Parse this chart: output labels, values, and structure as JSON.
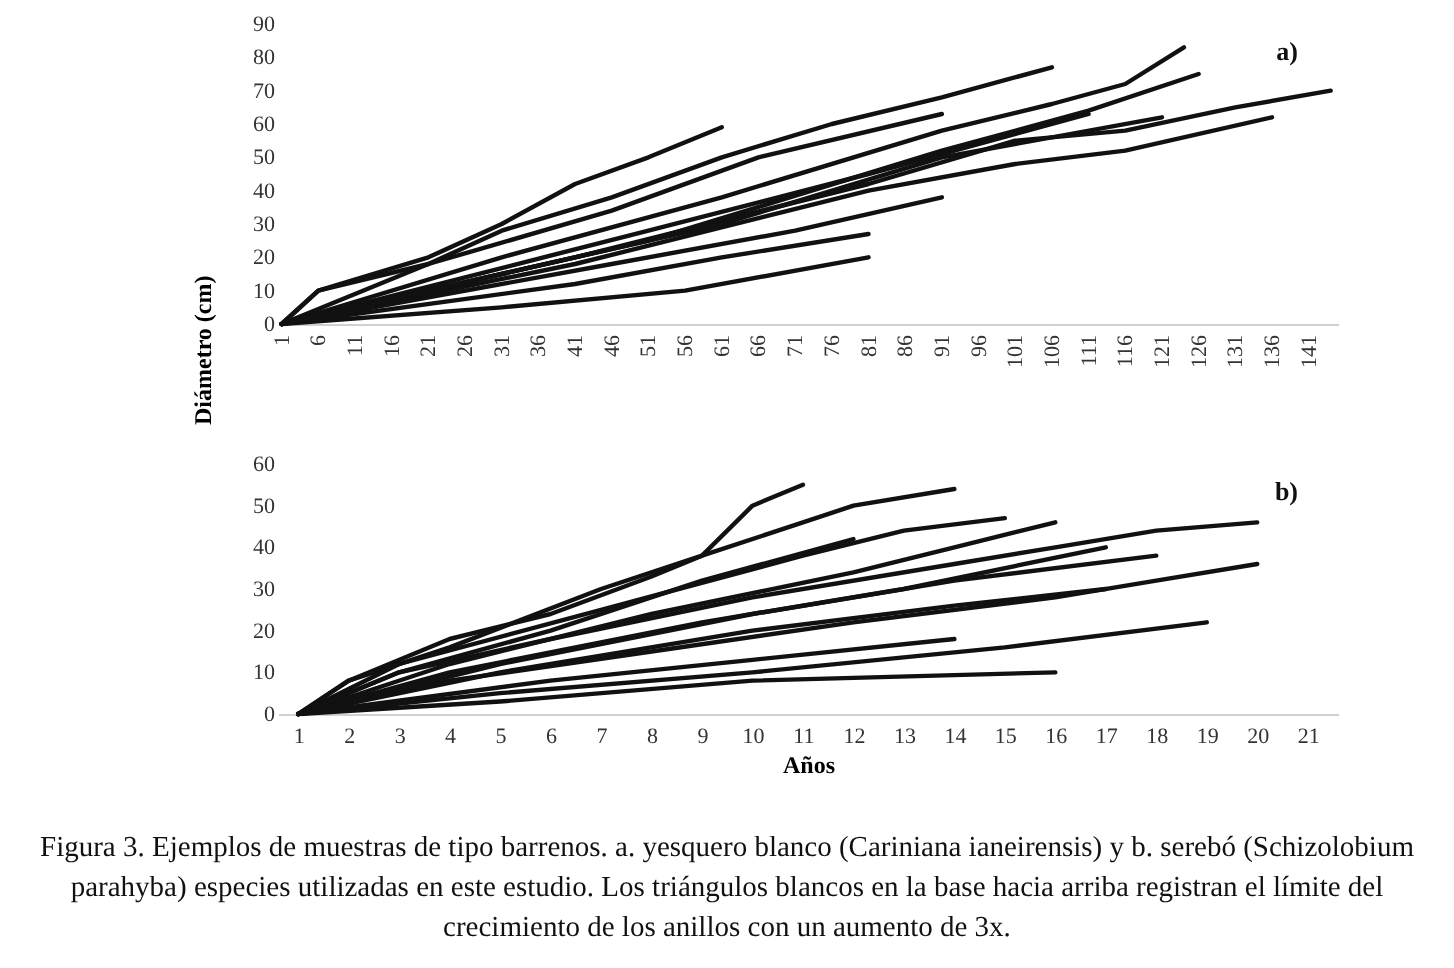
{
  "chart_data": [
    {
      "type": "line",
      "ylabel": "Diámetro (cm)",
      "xlim": [
        0.5,
        145
      ],
      "xticks": [
        1,
        6,
        11,
        16,
        21,
        26,
        31,
        36,
        41,
        46,
        51,
        56,
        61,
        66,
        71,
        76,
        81,
        86,
        91,
        96,
        101,
        106,
        111,
        116,
        121,
        126,
        131,
        136,
        141
      ],
      "ylim": [
        0,
        90
      ],
      "yticks": [
        0,
        10,
        20,
        30,
        40,
        50,
        60,
        70,
        80,
        90
      ],
      "annotations": [
        "a)"
      ],
      "series": [
        {
          "color": "#111111",
          "x": [
            1,
            6,
            21,
            31,
            41,
            51,
            61
          ],
          "values": [
            0,
            10,
            20,
            30,
            42,
            50,
            59
          ]
        },
        {
          "color": "#111111",
          "x": [
            1,
            21,
            31,
            46,
            61,
            76,
            91,
            106
          ],
          "values": [
            0,
            18,
            28,
            38,
            50,
            60,
            68,
            77
          ]
        },
        {
          "color": "#111111",
          "x": [
            1,
            31,
            61,
            91,
            106,
            116,
            124
          ],
          "values": [
            0,
            20,
            38,
            58,
            66,
            72,
            83
          ]
        },
        {
          "color": "#111111",
          "x": [
            1,
            41,
            81,
            101,
            116,
            131,
            144
          ],
          "values": [
            0,
            20,
            42,
            55,
            58,
            65,
            70
          ]
        },
        {
          "color": "#111111",
          "x": [
            1,
            41,
            81,
            101,
            116,
            136
          ],
          "values": [
            0,
            18,
            40,
            48,
            52,
            62
          ]
        },
        {
          "color": "#111111",
          "x": [
            1,
            31,
            56,
            81
          ],
          "values": [
            0,
            5,
            10,
            20
          ]
        },
        {
          "color": "#111111",
          "x": [
            1,
            41,
            61,
            81
          ],
          "values": [
            0,
            12,
            20,
            27
          ]
        },
        {
          "color": "#111111",
          "x": [
            1,
            51,
            91,
            111,
            126
          ],
          "values": [
            0,
            25,
            52,
            64,
            75
          ]
        },
        {
          "color": "#111111",
          "x": [
            1,
            6,
            21,
            46,
            66,
            91
          ],
          "values": [
            0,
            10,
            18,
            34,
            50,
            63
          ]
        },
        {
          "color": "#111111",
          "x": [
            1,
            51,
            81,
            111
          ],
          "values": [
            0,
            28,
            45,
            63
          ]
        },
        {
          "color": "#111111",
          "x": [
            1,
            46,
            71,
            91
          ],
          "values": [
            0,
            18,
            28,
            38
          ]
        },
        {
          "color": "#111111",
          "x": [
            1,
            61,
            91,
            121
          ],
          "values": [
            0,
            30,
            50,
            62
          ]
        }
      ]
    },
    {
      "type": "line",
      "xlabel": "Años",
      "xlim": [
        0.6,
        21.6
      ],
      "xticks": [
        1,
        2,
        3,
        4,
        5,
        6,
        7,
        8,
        9,
        10,
        11,
        12,
        13,
        14,
        15,
        16,
        17,
        18,
        19,
        20,
        21
      ],
      "ylim": [
        0,
        60
      ],
      "yticks": [
        0,
        10,
        20,
        30,
        40,
        50,
        60
      ],
      "annotations": [
        "b)",
        "Figura 3. Ejemplos de muestras de tipo barrenos. a. yesquero blanco (Cariniana ianeirensis) y b. serebó (Schizolobium parahyba) especies utilizadas en este estudio. Los triángulos blancos en la base hacia arriba registran el límite del crecimiento de los anillos con un aumento de 3x."
      ],
      "series": [
        {
          "color": "#111111",
          "x": [
            1,
            2,
            4,
            6,
            8,
            9,
            10,
            11
          ],
          "values": [
            0,
            8,
            18,
            24,
            33,
            38,
            50,
            55
          ]
        },
        {
          "color": "#111111",
          "x": [
            1,
            2,
            4,
            7,
            9,
            11,
            12,
            14
          ],
          "values": [
            0,
            8,
            16,
            30,
            38,
            46,
            50,
            54
          ]
        },
        {
          "color": "#111111",
          "x": [
            1,
            3,
            6,
            10,
            14,
            16,
            18,
            20
          ],
          "values": [
            0,
            10,
            18,
            28,
            36,
            40,
            44,
            46
          ]
        },
        {
          "color": "#111111",
          "x": [
            1,
            4,
            8,
            12,
            16,
            18,
            20
          ],
          "values": [
            0,
            8,
            15,
            22,
            28,
            32,
            36
          ]
        },
        {
          "color": "#111111",
          "x": [
            1,
            5,
            10,
            15,
            19
          ],
          "values": [
            0,
            5,
            10,
            16,
            22
          ]
        },
        {
          "color": "#111111",
          "x": [
            1,
            5,
            10,
            16
          ],
          "values": [
            0,
            3,
            8,
            10
          ]
        },
        {
          "color": "#111111",
          "x": [
            1,
            3,
            7,
            11,
            13,
            15
          ],
          "values": [
            0,
            12,
            25,
            38,
            44,
            47
          ]
        },
        {
          "color": "#111111",
          "x": [
            1,
            4,
            8,
            12,
            14,
            16
          ],
          "values": [
            0,
            12,
            24,
            34,
            40,
            46
          ]
        },
        {
          "color": "#111111",
          "x": [
            1,
            5,
            10,
            14,
            17
          ],
          "values": [
            0,
            10,
            20,
            26,
            30
          ]
        },
        {
          "color": "#111111",
          "x": [
            1,
            3,
            6,
            9,
            12
          ],
          "values": [
            0,
            10,
            20,
            32,
            42
          ]
        },
        {
          "color": "#111111",
          "x": [
            1,
            4,
            9,
            13,
            17
          ],
          "values": [
            0,
            10,
            22,
            30,
            40
          ]
        },
        {
          "color": "#111111",
          "x": [
            1,
            6,
            10,
            14
          ],
          "values": [
            0,
            8,
            13,
            18
          ]
        },
        {
          "color": "#111111",
          "x": [
            1,
            5,
            10,
            14,
            18
          ],
          "values": [
            0,
            12,
            24,
            32,
            38
          ]
        }
      ]
    }
  ]
}
